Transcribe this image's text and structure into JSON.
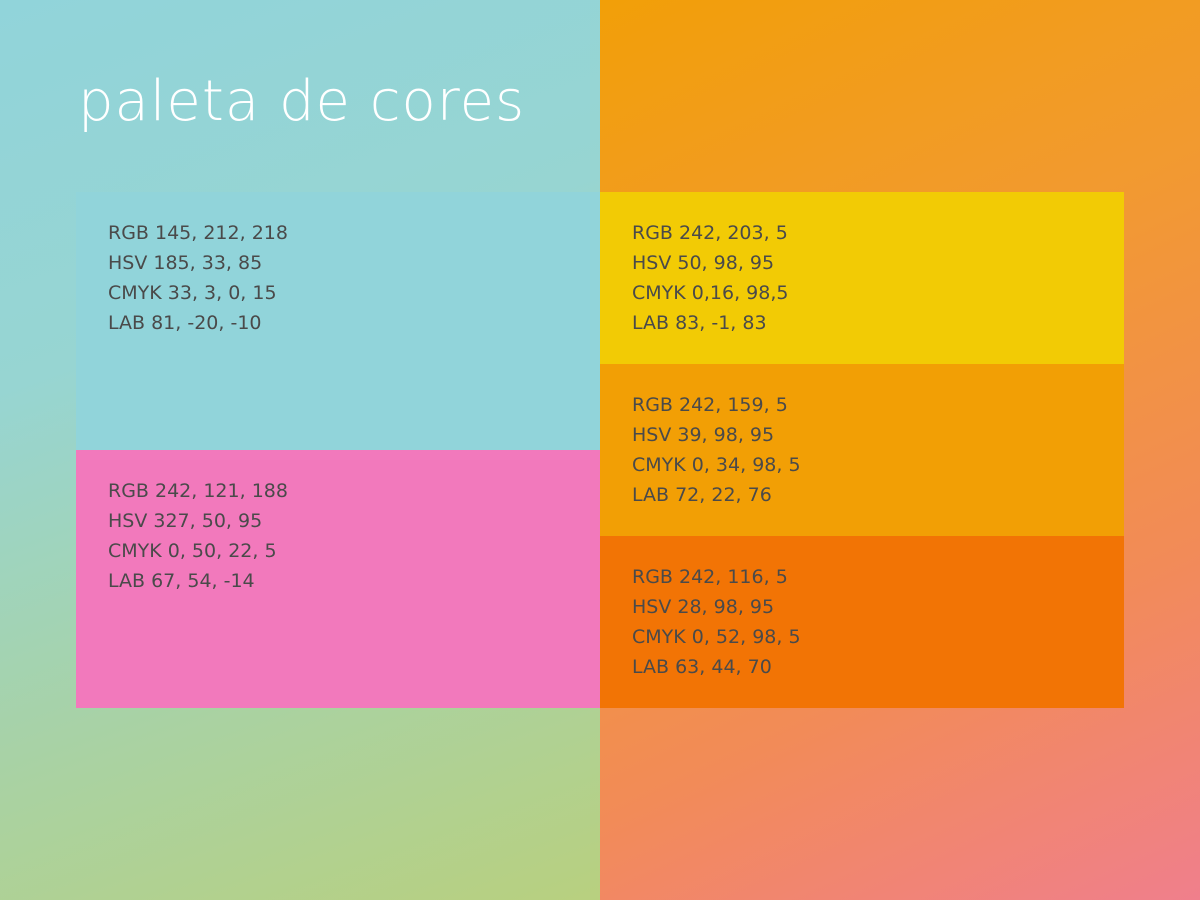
{
  "title": "paleta de cores",
  "background": {
    "left_colors": [
      "#91d4da",
      "#b8d07f"
    ],
    "right_colors": [
      "#f29f08",
      "#f07f8c"
    ]
  },
  "swatches": {
    "blue": {
      "color": "#91d4da",
      "rgb": "RGB 145, 212, 218",
      "hsv": "HSV 185, 33, 85",
      "cmyk": "CMYK 33, 3, 0, 15",
      "lab": "LAB 81, -20, -10"
    },
    "pink": {
      "color": "#f279bc",
      "rgb": "RGB 242, 121, 188",
      "hsv": "HSV 327, 50, 95",
      "cmyk": "CMYK 0, 50, 22, 5",
      "lab": "LAB 67, 54, -14"
    },
    "yellow": {
      "color": "#f2cb05",
      "rgb": "RGB 242, 203, 5",
      "hsv": "HSV 50, 98, 95",
      "cmyk": "CMYK 0,16, 98,5",
      "lab": "LAB 83, -1, 83"
    },
    "amber": {
      "color": "#f29f05",
      "rgb": "RGB 242, 159, 5",
      "hsv": "HSV 39, 98, 95",
      "cmyk": "CMYK 0, 34, 98, 5",
      "lab": "LAB 72, 22, 76"
    },
    "orange": {
      "color": "#f27405",
      "rgb": "RGB 242, 116, 5",
      "hsv": "HSV 28, 98, 95",
      "cmyk": "CMYK 0, 52, 98, 5",
      "lab": "LAB 63, 44, 70"
    }
  }
}
